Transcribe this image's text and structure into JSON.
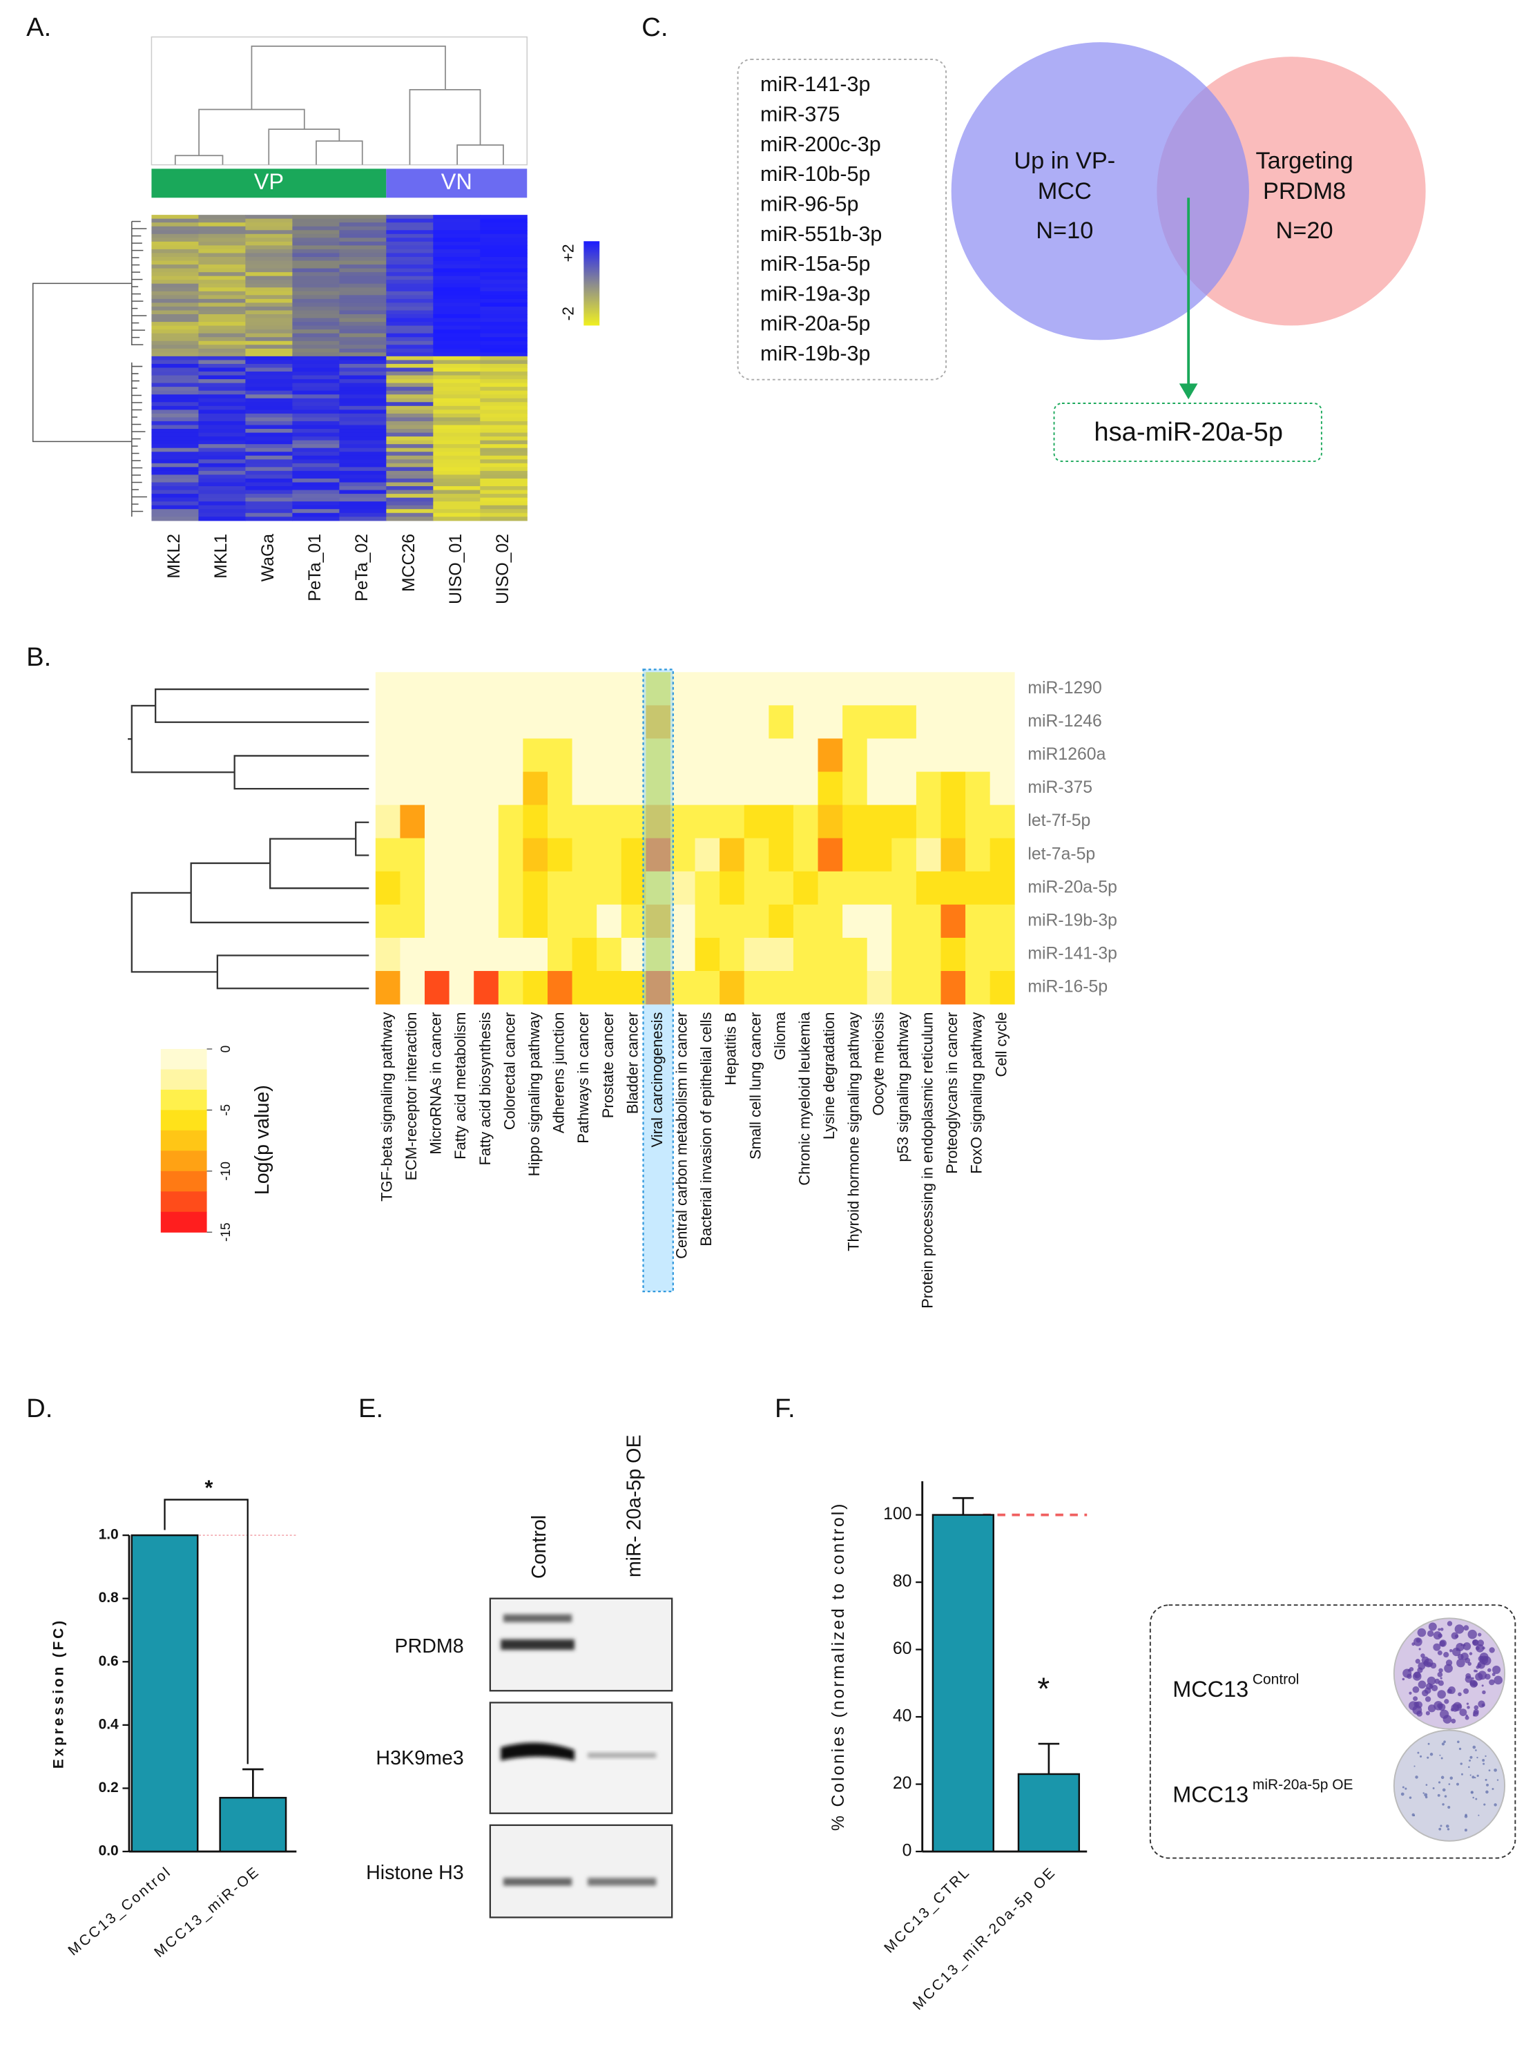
{
  "panels": {
    "A": {
      "label": "A.",
      "groups": [
        "VP",
        "VN"
      ],
      "group_colors": [
        "#1aa85a",
        "#6b6bf2"
      ],
      "colorbar_labels": [
        "+2",
        "-2"
      ],
      "samples": [
        "MKL2",
        "MKL1",
        "WaGa",
        "PeTa_01",
        "PeTa_02",
        "MCC26",
        "UISO_01",
        "UISO_02"
      ]
    },
    "C": {
      "label": "C.",
      "list": [
        "miR-141-3p",
        "miR-375",
        "miR-200c-3p",
        "miR-10b-5p",
        "miR-96-5p",
        "miR-551b-3p",
        "miR-15a-5p",
        "miR-19a-3p",
        "miR-20a-5p",
        "miR-19b-3p"
      ],
      "sets": [
        {
          "lines": [
            "Up in VP-",
            "MCC"
          ],
          "count": "N=10",
          "color": "#8f8ff2"
        },
        {
          "lines": [
            "Targeting",
            "PRDM8"
          ],
          "count": "N=20",
          "color": "#f9b0b0"
        }
      ],
      "intersection": "hsa-miR-20a-5p"
    },
    "E": {
      "label": "E.",
      "lanes": [
        "Control",
        "miR- 20a-5p OE"
      ],
      "proteins": [
        "PRDM8",
        "H3K9me3",
        "Histone H3"
      ]
    }
  },
  "chart_data": [
    {
      "type": "heatmap",
      "panel_label": "B.",
      "x_categories": [
        "TGF-beta signaling pathway",
        "ECM-receptor interaction",
        "MicroRNAs in cancer",
        "Fatty acid metabolism",
        "Fatty acid biosynthesis",
        "Colorectal cancer",
        "Hippo signaling pathway",
        "Adherens junction",
        "Pathways in cancer",
        "Prostate cancer",
        "Bladder cancer",
        "Viral carcinogenesis",
        "Central carbon metabolism in cancer",
        "Bacterial invasion of epithelial cells",
        "Hepatitis B",
        "Small cell lung cancer",
        "Glioma",
        "Chronic myeloid leukemia",
        "Lysine degradation",
        "Thyroid hormone signaling pathway",
        "Oocyte meiosis",
        "p53 signaling pathway",
        "Protein processing in endoplasmic reticulum",
        "Proteoglycans in cancer",
        "FoxO signaling pathway",
        "Cell cycle"
      ],
      "y_categories": [
        "miR-1290",
        "miR-1246",
        "miR1260a",
        "miR-375",
        "let-7f-5p",
        "let-7a-5p",
        "miR-20a-5p",
        "miR-19b-3p",
        "miR-141-3p",
        "miR-16-5p"
      ],
      "values": [
        [
          0,
          0,
          0,
          0,
          0,
          0,
          0,
          0,
          0,
          0,
          0,
          -3,
          0,
          0,
          0,
          0,
          0,
          0,
          0,
          0,
          0,
          0,
          0,
          0,
          0,
          0
        ],
        [
          0,
          0,
          0,
          0,
          0,
          0,
          0,
          0,
          0,
          0,
          0,
          -7,
          0,
          0,
          0,
          0,
          -4,
          0,
          0,
          -4,
          -4,
          -4,
          0,
          0,
          0,
          0
        ],
        [
          0,
          0,
          0,
          0,
          0,
          0,
          -4,
          -4,
          0,
          0,
          0,
          -3,
          0,
          0,
          0,
          0,
          0,
          0,
          -9,
          -4,
          0,
          0,
          0,
          0,
          0,
          0
        ],
        [
          0,
          0,
          0,
          0,
          0,
          0,
          -7,
          -4,
          0,
          0,
          0,
          -4,
          0,
          0,
          0,
          0,
          0,
          0,
          -6,
          -4,
          0,
          0,
          -4,
          -5,
          -4,
          0
        ],
        [
          -2,
          -10,
          0,
          0,
          0,
          -4,
          -5,
          -4,
          -4,
          -4,
          -4,
          -7,
          -4,
          -4,
          -4,
          -5,
          -5,
          -4,
          -7,
          -5,
          -5,
          -5,
          -4,
          -5,
          -4,
          -4
        ],
        [
          -4,
          -4,
          0,
          0,
          0,
          -4,
          -7,
          -6,
          -4,
          -4,
          -5,
          -11,
          -4,
          -2,
          -8,
          -4,
          -6,
          -4,
          -11,
          -6,
          -6,
          -4,
          -2,
          -7,
          -4,
          -6
        ],
        [
          -5,
          -4,
          0,
          0,
          0,
          -4,
          -6,
          -4,
          -4,
          -4,
          -5,
          -4,
          -2,
          -4,
          -6,
          -4,
          -4,
          -6,
          -4,
          -4,
          -4,
          -4,
          -6,
          -6,
          -5,
          -5
        ],
        [
          -4,
          -4,
          0,
          0,
          0,
          -4,
          -5,
          -4,
          -4,
          0,
          -4,
          -8,
          0,
          -4,
          -4,
          -4,
          -5,
          -4,
          -4,
          0,
          0,
          -4,
          -4,
          -12,
          -4,
          -4
        ],
        [
          -2,
          0,
          0,
          0,
          0,
          0,
          0,
          -4,
          -5,
          -4,
          0,
          -4,
          0,
          -5,
          -4,
          -2,
          -2,
          -4,
          -4,
          -4,
          0,
          -4,
          -4,
          -6,
          -4,
          -4
        ],
        [
          -9,
          0,
          -13,
          0,
          -13,
          -4,
          -6,
          -11,
          -5,
          -5,
          -5,
          -11,
          -4,
          -4,
          -8,
          -4,
          -4,
          -4,
          -4,
          -4,
          -2,
          -4,
          -4,
          -11,
          -4,
          -6
        ]
      ],
      "colorscale": [
        "#fffbd2",
        "#fff6a4",
        "#fff04c",
        "#ffe21a",
        "#ffc616",
        "#ffa214",
        "#ff7a14",
        "#ff4c1a",
        "#ff1e1e"
      ],
      "colorbar_lim": [
        0,
        -15
      ],
      "colorbar_ticks": [
        0,
        -5,
        -10,
        -15
      ],
      "colorbar_title": "Log(p value)",
      "highlighted_column": 11
    },
    {
      "type": "bar",
      "panel_label": "D.",
      "categories": [
        "MCC13_Control",
        "MCC13_miR-OE"
      ],
      "values": [
        1.0,
        0.17
      ],
      "errors": [
        null,
        0.09
      ],
      "color": "#1a96ab",
      "ylim": [
        0,
        1.0
      ],
      "yticks": [
        {
          "value": 0,
          "label": "0.0"
        },
        {
          "value": 0.2,
          "label": "0.2"
        },
        {
          "value": 0.4,
          "label": "0.4"
        },
        {
          "value": 0.6,
          "label": "0.6"
        },
        {
          "value": 0.8,
          "label": "0.8"
        },
        {
          "value": 1.0,
          "label": "1.0"
        }
      ],
      "ylabel": "Expression (FC)",
      "reference_line": 1.0,
      "reference_color": "#f2a0a8",
      "annotation": "*"
    },
    {
      "type": "bar",
      "panel_label": "F.",
      "categories": [
        "MCC13_CTRL",
        "MCC13_miR-20a-5p OE"
      ],
      "values": [
        100,
        23
      ],
      "errors": [
        5,
        9
      ],
      "color": "#1a96ab",
      "ylim": [
        0,
        110
      ],
      "yticks": [
        0,
        20,
        40,
        60,
        80,
        100
      ],
      "ylabel": "% Colonies (normalized to control)",
      "reference_line": 100,
      "reference_color": "#f06060",
      "annotation": "*",
      "inset": [
        {
          "name": "MCC13",
          "condition": "Control"
        },
        {
          "name": "MCC13",
          "condition": "miR-20a-5p OE"
        }
      ]
    }
  ]
}
